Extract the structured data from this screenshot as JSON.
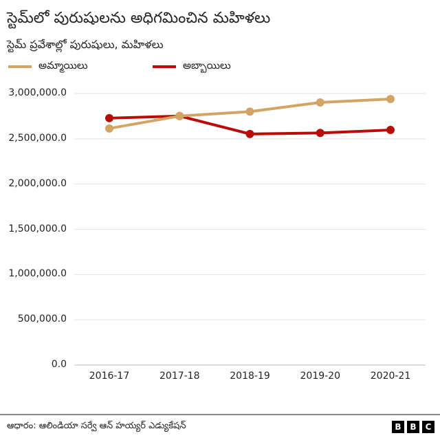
{
  "header": {
    "title": "స్టెమ్‌లో పురుషులను అధిగమించిన మహిళలు",
    "subtitle": "స్టెమ్ ప్రవేశాల్లో పురుషులు, మహిళలు"
  },
  "legend": [
    {
      "label": "అమ్మాయిలు",
      "color": "#d3a565"
    },
    {
      "label": "అబ్బాయిలు",
      "color": "#b80c09"
    }
  ],
  "footer": {
    "source": "ఆధారం: ఆలిండియా సర్వే ఆన్ హయ్యర్ ఎడ్యుకేషన్",
    "logo_letters": [
      "B",
      "B",
      "C"
    ]
  },
  "chart_data": {
    "type": "line",
    "title": "స్టెమ్‌లో పురుషులను అధిగమించిన మహిళలు",
    "subtitle": "స్టెమ్ ప్రవేశాల్లో పురుషులు, మహిళలు",
    "categories": [
      "2016-17",
      "2017-18",
      "2018-19",
      "2019-20",
      "2020-21"
    ],
    "series": [
      {
        "name": "అమ్మాయిలు",
        "color": "#d3a565",
        "values": [
          2614000,
          2751000,
          2800000,
          2901000,
          2939000
        ]
      },
      {
        "name": "అబ్బాయిలు",
        "color": "#b80c09",
        "values": [
          2728000,
          2751000,
          2553000,
          2564000,
          2597000
        ]
      }
    ],
    "yticks": [
      "0.0",
      "500,000.0",
      "1,000,000.0",
      "1,500,000.0",
      "2,000,000.0",
      "2,500,000.0",
      "3,000,000.0"
    ],
    "ylim": [
      0,
      3000000
    ],
    "xlabel": "",
    "ylabel": "",
    "grid": true,
    "legend_position": "top-left",
    "source": "ఆధారం: ఆలిండియా సర్వే ఆన్ హయ్యర్ ఎడ్యుకేషన్"
  }
}
